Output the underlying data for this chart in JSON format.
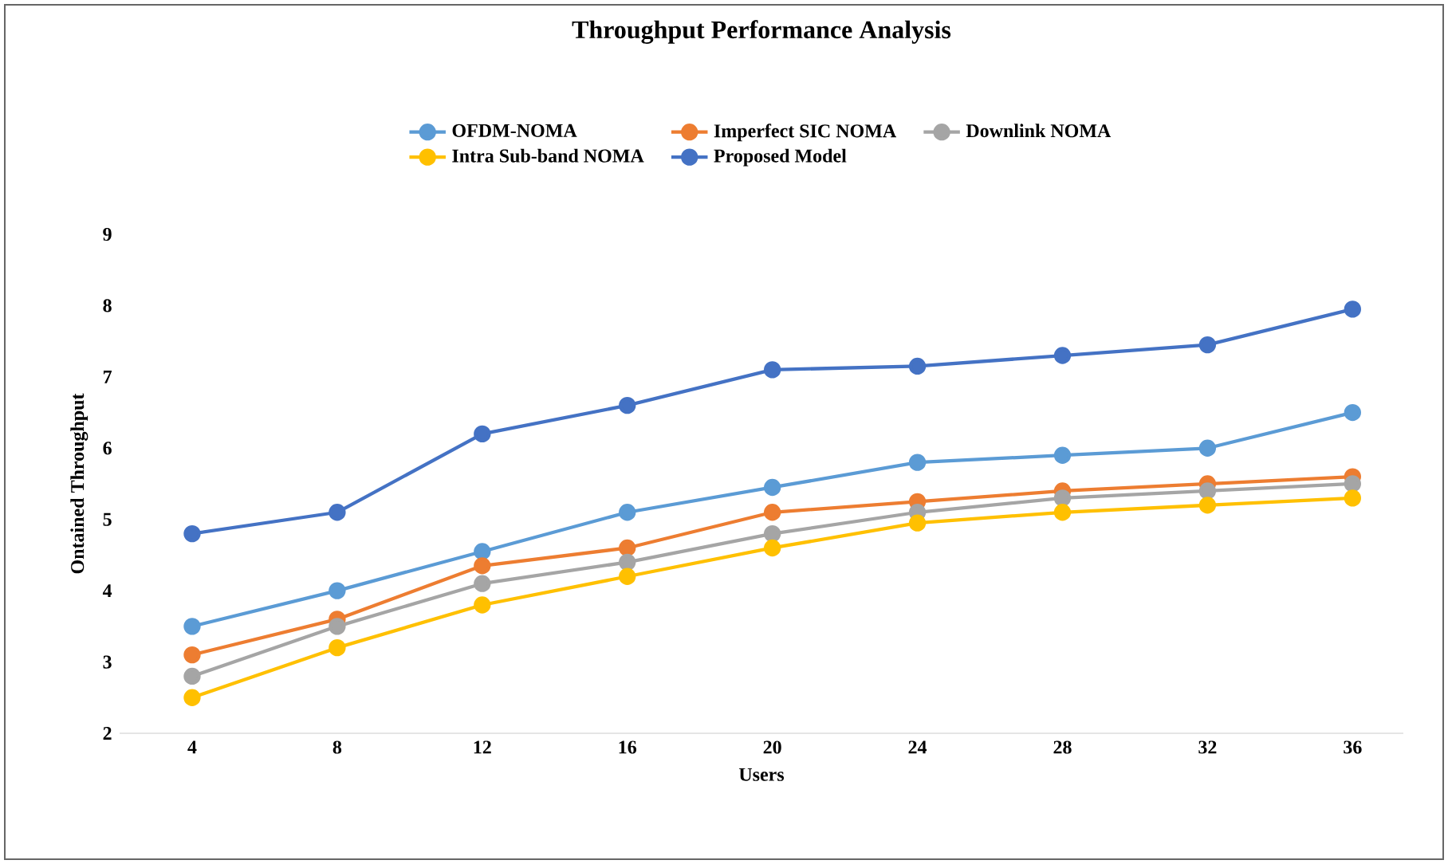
{
  "chart_data": {
    "type": "line",
    "title": "Throughput Performance Analysis",
    "xlabel": "Users",
    "ylabel": "Ontained Throughput",
    "categories": [
      "4",
      "8",
      "12",
      "16",
      "20",
      "24",
      "28",
      "32",
      "36"
    ],
    "ylim": [
      2,
      9
    ],
    "yticks": [
      2,
      3,
      4,
      5,
      6,
      7,
      8,
      9
    ],
    "grid": false,
    "legend": "top",
    "marker": "circle",
    "line_style": "solid",
    "series": [
      {
        "name": "OFDM-NOMA",
        "color": "#5b9bd5",
        "values": [
          3.5,
          4.0,
          4.55,
          5.1,
          5.45,
          5.8,
          5.9,
          6.0,
          6.5
        ]
      },
      {
        "name": "Imperfect SIC NOMA",
        "color": "#ed7d31",
        "values": [
          3.1,
          3.6,
          4.35,
          4.6,
          5.1,
          5.25,
          5.4,
          5.5,
          5.6
        ]
      },
      {
        "name": "Downlink NOMA",
        "color": "#a5a5a5",
        "values": [
          2.8,
          3.5,
          4.1,
          4.4,
          4.8,
          5.1,
          5.3,
          5.4,
          5.5
        ]
      },
      {
        "name": "Intra Sub-band NOMA",
        "color": "#ffc000",
        "values": [
          2.5,
          3.2,
          3.8,
          4.2,
          4.6,
          4.95,
          5.1,
          5.2,
          5.3
        ]
      },
      {
        "name": "Proposed Model",
        "color": "#4472c4",
        "values": [
          4.8,
          5.1,
          6.2,
          6.6,
          7.1,
          7.15,
          7.3,
          7.45,
          7.95
        ]
      }
    ]
  }
}
